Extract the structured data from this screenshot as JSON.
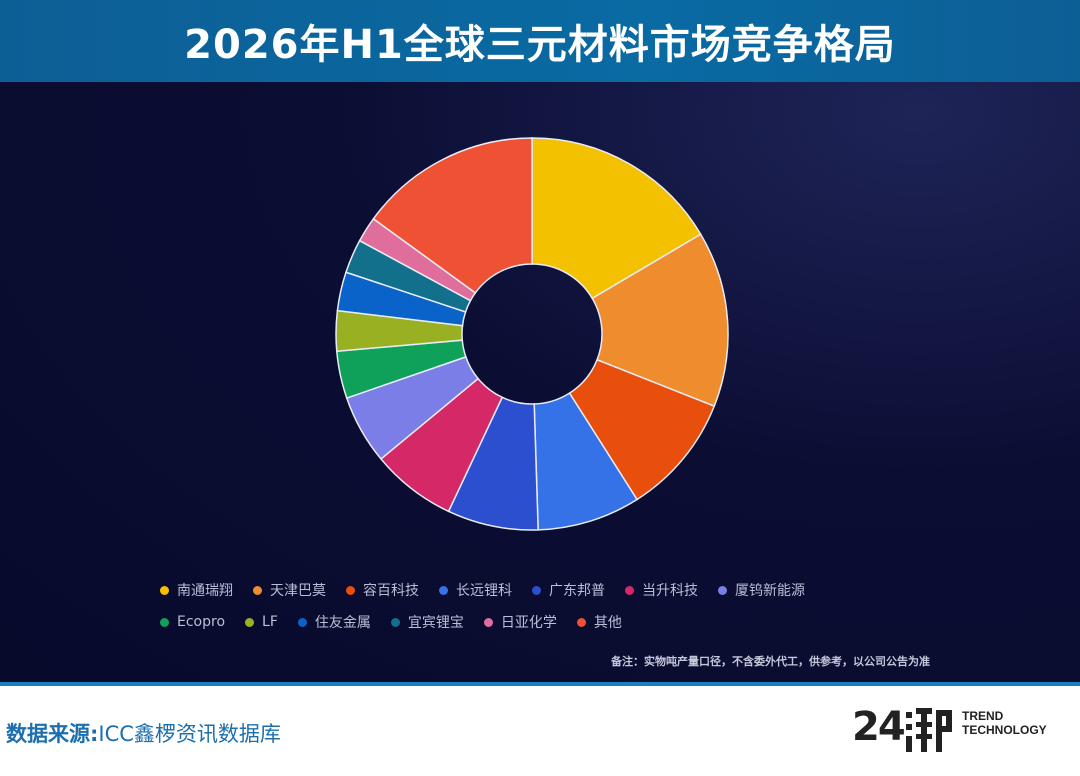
{
  "header": {
    "title": "2026年H1全球三元材料市场竞争格局"
  },
  "chart_data": {
    "type": "pie",
    "variant": "donut",
    "title": "2026年H1全球三元材料市场竞争格局",
    "unit": "%",
    "legend_position": "bottom",
    "series": [
      {
        "name": "南通瑞翔",
        "value": 16.5,
        "color": "#f3c100"
      },
      {
        "name": "天津巴莫",
        "value": 14.5,
        "color": "#ef8c2e"
      },
      {
        "name": "容百科技",
        "value": 10.0,
        "color": "#e84f0c"
      },
      {
        "name": "长远锂科",
        "value": 8.5,
        "color": "#3572e8"
      },
      {
        "name": "广东邦普",
        "value": 7.5,
        "color": "#2b4fcf"
      },
      {
        "name": "当升科技",
        "value": 7.0,
        "color": "#d42966"
      },
      {
        "name": "厦钨新能源",
        "value": 5.7,
        "color": "#7b7ee6"
      },
      {
        "name": "Ecopro",
        "value": 3.9,
        "color": "#0fa05a"
      },
      {
        "name": "LF",
        "value": 3.3,
        "color": "#9ab023"
      },
      {
        "name": "住友金属",
        "value": 3.2,
        "color": "#0a63c9"
      },
      {
        "name": "宜宾锂宝",
        "value": 2.8,
        "color": "#12708c"
      },
      {
        "name": "日亚化学",
        "value": 2.1,
        "color": "#e06e9c"
      },
      {
        "name": "其他",
        "value": 15.0,
        "color": "#ee5133"
      }
    ]
  },
  "note": "备注：实物吨产量口径，不含委外代工，供参考，以公司公告为准",
  "footer": {
    "source_key": "数据来源:",
    "source_value": "ICC鑫椤资讯数据库",
    "logo_number": "24",
    "logo_line1": "TREND",
    "logo_line2": "TECHNOLOGY"
  }
}
